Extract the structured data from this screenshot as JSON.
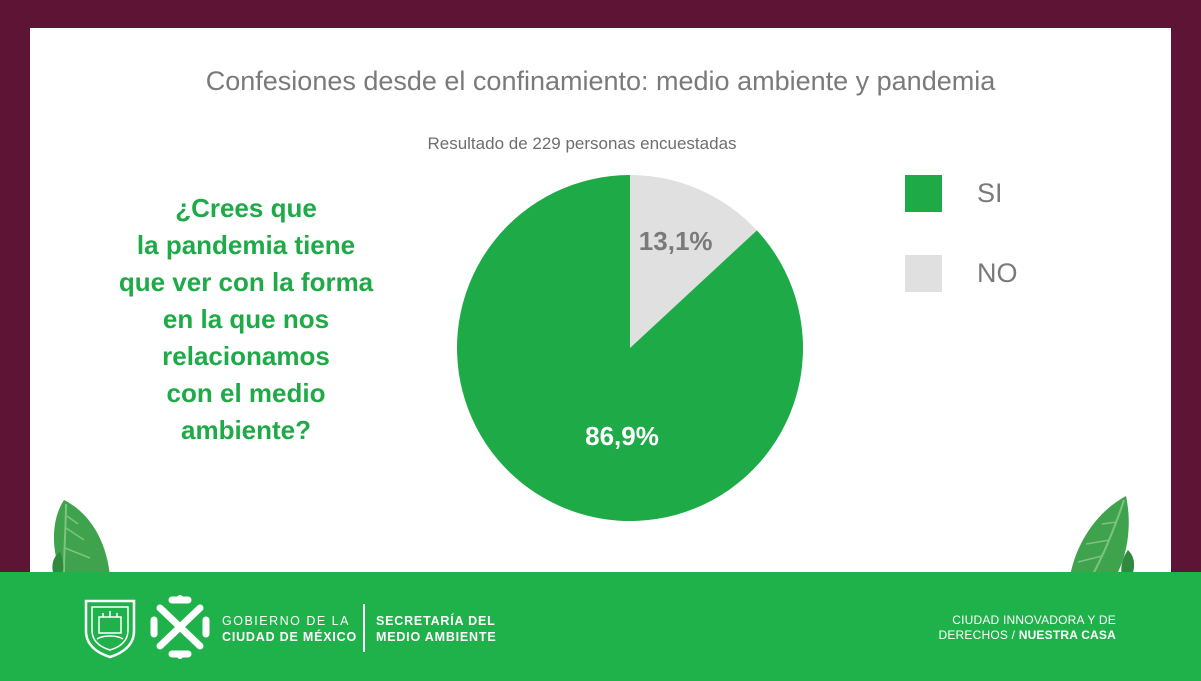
{
  "title": "Confesiones desde el confinamiento: medio ambiente y pandemia",
  "subtitle": "Resultado de 229 personas encuestadas",
  "question_lines": [
    "¿Crees que",
    "la pandemia tiene",
    "que ver con la forma",
    "en la que nos",
    "relacionamos",
    "con el medio",
    "ambiente?"
  ],
  "colors": {
    "frame": "#5e1435",
    "green": "#1faa48",
    "gray": "#e0e0e0",
    "footer_green": "#1fb24a",
    "leaf": "#3fa34d"
  },
  "chart_data": {
    "type": "pie",
    "slices": [
      {
        "name": "NO",
        "value": 13.1,
        "label": "13,1%",
        "color": "#e0e0e0",
        "label_color": "#7a7a7a"
      },
      {
        "name": "SI",
        "value": 86.9,
        "label": "86,9%",
        "color": "#1faa48",
        "label_color": "#ffffff"
      }
    ],
    "legend": [
      "SI",
      "NO"
    ],
    "legend_position": "right"
  },
  "legend": [
    {
      "label": "SI",
      "color": "#1faa48"
    },
    {
      "label": "NO",
      "color": "#e0e0e0"
    }
  ],
  "footer": {
    "gov_line1": "GOBIERNO DE LA",
    "gov_line2": "CIUDAD DE MÉXICO",
    "sec_line1": "SECRETARÍA DEL",
    "sec_line2": "MEDIO AMBIENTE",
    "right_line1": "CIUDAD INNOVADORA Y DE",
    "right_line2_a": "DERECHOS / ",
    "right_line2_b": "NUESTRA CASA"
  }
}
